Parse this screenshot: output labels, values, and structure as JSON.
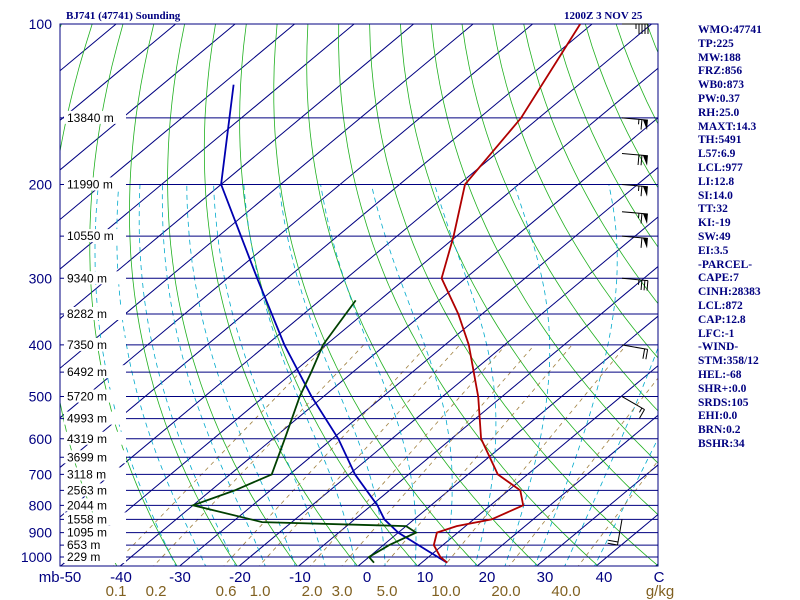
{
  "header": {
    "station": "BJ741 (47741) Sounding",
    "time": "1200Z  3 NOV 25"
  },
  "indices": [
    "WMO:47741",
    "TP:225",
    "MW:188",
    "FRZ:856",
    "WB0:873",
    "PW:0.37",
    "RH:25.0",
    "MAXT:14.3",
    "TH:5491",
    "L57:6.9",
    "LCL:977",
    "LI:12.8",
    "SI:14.0",
    "TT:32",
    "KI:-19",
    "SW:49",
    "EI:3.5",
    "-PARCEL-",
    "CAPE:7",
    "CINH:28383",
    "LCL:872",
    "CAP:12.8",
    "LFC:-1",
    "-WIND-",
    "STM:358/12",
    "HEL:-68",
    "SHR+:0.0",
    "SRDS:105",
    "EHI:0.0",
    "BRN:0.2",
    "BSHR:34"
  ],
  "colors": {
    "isobar": "#000080",
    "isotherm": "#000080",
    "dry_adiabat": "#20b020",
    "moist_adiabat": "#00aacc",
    "mixing_ratio": "#a08040",
    "temperature": "#b00000",
    "dewpoint": "#004000",
    "parcel": "#0000b0",
    "index_text": "#000080",
    "axis_text": "#000080",
    "mixratio_text": "#806020"
  },
  "chart_data": {
    "type": "skew-t log-p",
    "x_unit": "°C",
    "x_ticks": [
      "mb-50",
      "-40",
      "-30",
      "-20",
      "-10",
      "0",
      "10",
      "20",
      "30",
      "40",
      "C"
    ],
    "mixing_ratio_unit": "g/kg",
    "mixing_ratio_labels": [
      "0.1",
      "0.2",
      "0.6",
      "1.0",
      "2.0",
      "3.0",
      "5.0",
      "10.0",
      "20.0",
      "40.0"
    ],
    "pressure_labels": [
      "100",
      "200",
      "300",
      "400",
      "500",
      "600",
      "700",
      "800",
      "900",
      "1000"
    ],
    "heights": [
      {
        "p": 150,
        "label": "13840 m"
      },
      {
        "p": 200,
        "label": "11990 m"
      },
      {
        "p": 250,
        "label": "10550 m"
      },
      {
        "p": 300,
        "label": "9340 m"
      },
      {
        "p": 350,
        "label": "8282 m"
      },
      {
        "p": 400,
        "label": "7350 m"
      },
      {
        "p": 450,
        "label": "6492 m"
      },
      {
        "p": 500,
        "label": "5720 m"
      },
      {
        "p": 550,
        "label": "4993 m"
      },
      {
        "p": 600,
        "label": "4319 m"
      },
      {
        "p": 650,
        "label": "3699 m"
      },
      {
        "p": 700,
        "label": "3118 m"
      },
      {
        "p": 750,
        "label": "2563 m"
      },
      {
        "p": 800,
        "label": "2044 m"
      },
      {
        "p": 850,
        "label": "1558 m"
      },
      {
        "p": 900,
        "label": "1095 m"
      },
      {
        "p": 950,
        "label": "653 m"
      },
      {
        "p": 1000,
        "label": "229 m"
      }
    ],
    "temperature_profile": [
      {
        "p": 1025,
        "t": 14.3
      },
      {
        "p": 1000,
        "t": 12
      },
      {
        "p": 950,
        "t": 8.5
      },
      {
        "p": 900,
        "t": 6.5
      },
      {
        "p": 875,
        "t": 8.5
      },
      {
        "p": 850,
        "t": 13
      },
      {
        "p": 800,
        "t": 15.5
      },
      {
        "p": 750,
        "t": 12
      },
      {
        "p": 700,
        "t": 5
      },
      {
        "p": 600,
        "t": -5
      },
      {
        "p": 500,
        "t": -14
      },
      {
        "p": 400,
        "t": -26
      },
      {
        "p": 350,
        "t": -34
      },
      {
        "p": 300,
        "t": -44
      },
      {
        "p": 250,
        "t": -50.5
      },
      {
        "p": 200,
        "t": -59
      },
      {
        "p": 150,
        "t": -63
      },
      {
        "p": 100,
        "t": -72
      }
    ],
    "dewpoint_profile": [
      {
        "p": 1025,
        "t": 2
      },
      {
        "p": 1000,
        "t": 0
      },
      {
        "p": 950,
        "t": 1
      },
      {
        "p": 900,
        "t": 3
      },
      {
        "p": 875,
        "t": 0
      },
      {
        "p": 860,
        "t": -25
      },
      {
        "p": 800,
        "t": -40
      },
      {
        "p": 750,
        "t": -36
      },
      {
        "p": 700,
        "t": -33
      },
      {
        "p": 600,
        "t": -38
      },
      {
        "p": 500,
        "t": -44
      },
      {
        "p": 450,
        "t": -47
      },
      {
        "p": 400,
        "t": -50.5
      },
      {
        "p": 330,
        "t": -54
      }
    ],
    "parcel_profile": [
      {
        "p": 1025,
        "t": 14.3
      },
      {
        "p": 977,
        "t": 9
      },
      {
        "p": 900,
        "t": 0
      },
      {
        "p": 850,
        "t": -5
      },
      {
        "p": 800,
        "t": -9
      },
      {
        "p": 700,
        "t": -19
      },
      {
        "p": 600,
        "t": -29
      },
      {
        "p": 500,
        "t": -42
      },
      {
        "p": 400,
        "t": -57
      },
      {
        "p": 300,
        "t": -75
      },
      {
        "p": 200,
        "t": -100
      },
      {
        "p": 130,
        "t": -118
      }
    ],
    "wind_barbs": [
      {
        "p": 100,
        "dir": 270,
        "speed": 45
      },
      {
        "p": 150,
        "dir": 275,
        "speed": 65
      },
      {
        "p": 175,
        "dir": 275,
        "speed": 70
      },
      {
        "p": 200,
        "dir": 275,
        "speed": 65
      },
      {
        "p": 225,
        "dir": 275,
        "speed": 65
      },
      {
        "p": 250,
        "dir": 275,
        "speed": 60
      },
      {
        "p": 300,
        "dir": 275,
        "speed": 35
      },
      {
        "p": 400,
        "dir": 280,
        "speed": 20
      },
      {
        "p": 500,
        "dir": 300,
        "speed": 15
      },
      {
        "p": 850,
        "dir": 10,
        "speed": 20
      }
    ]
  }
}
